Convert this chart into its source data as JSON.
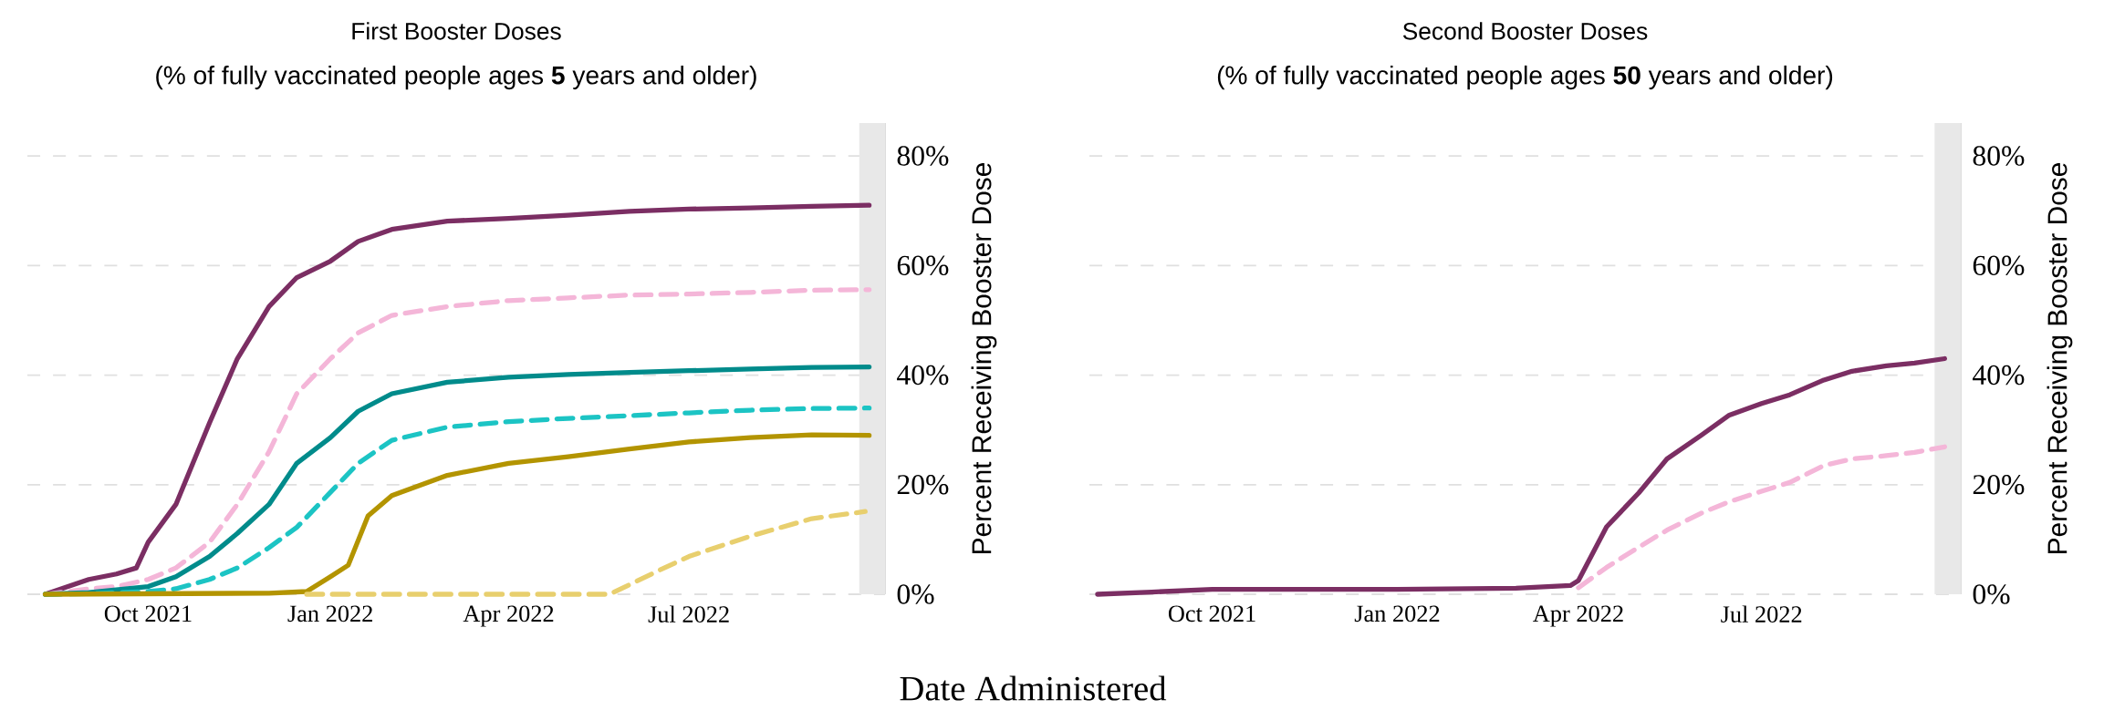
{
  "chart_data": [
    {
      "type": "line",
      "title": "First Booster Doses",
      "subtitle": "(% of fully vaccinated people ages **5** years and older)",
      "xlabel": "Date Administered",
      "ylabel": "Percent Receiving Booster Dose",
      "xlim": [
        "2021-08-01",
        "2022-10-08"
      ],
      "ylim": [
        0,
        86
      ],
      "xticks": [
        {
          "value": "2021-10-01",
          "label": "Oct 2021"
        },
        {
          "value": "2022-01-01",
          "label": "Jan 2022"
        },
        {
          "value": "2022-04-01",
          "label": "Apr 2022"
        },
        {
          "value": "2022-07-01",
          "label": "Jul 2022"
        }
      ],
      "yticks": [
        {
          "value": 0,
          "label": "0%"
        },
        {
          "value": 20,
          "label": "20%"
        },
        {
          "value": 40,
          "label": "40%"
        },
        {
          "value": 60,
          "label": "60%"
        },
        {
          "value": 80,
          "label": "80%"
        }
      ],
      "grid": "y",
      "bands": [
        {
          "axis": "x",
          "from": "2022-09-25",
          "to": "2022-10-08",
          "color": "#e8e8e8"
        }
      ],
      "series": [
        {
          "color": "#7b2e63",
          "line_style": "solid",
          "x": [
            "2021-08-10",
            "2021-09-01",
            "2021-09-15",
            "2021-09-25",
            "2021-10-01",
            "2021-10-15",
            "2021-11-01",
            "2021-11-15",
            "2021-12-01",
            "2021-12-15",
            "2022-01-01",
            "2022-01-15",
            "2022-02-01",
            "2022-03-01",
            "2022-04-01",
            "2022-05-01",
            "2022-06-01",
            "2022-07-01",
            "2022-08-01",
            "2022-09-01",
            "2022-09-30"
          ],
          "values": [
            0,
            2.7,
            3.7,
            4.8,
            9.5,
            16.4,
            31.3,
            43,
            52.5,
            57.8,
            60.8,
            64.4,
            66.6,
            68.1,
            68.6,
            69.2,
            69.9,
            70.3,
            70.5,
            70.8,
            71
          ]
        },
        {
          "color": "#f4b6d8",
          "line_style": "dashed",
          "x": [
            "2021-08-10",
            "2021-09-01",
            "2021-09-15",
            "2021-10-01",
            "2021-10-15",
            "2021-11-01",
            "2021-11-15",
            "2021-12-01",
            "2021-12-15",
            "2022-01-01",
            "2022-01-15",
            "2022-02-01",
            "2022-03-01",
            "2022-04-01",
            "2022-05-01",
            "2022-06-01",
            "2022-07-01",
            "2022-08-01",
            "2022-09-01",
            "2022-09-30"
          ],
          "values": [
            0,
            1,
            1.4,
            2.7,
            4.8,
            9.5,
            16.4,
            26,
            36.6,
            43,
            47.7,
            50.9,
            52.5,
            53.6,
            54.1,
            54.6,
            54.8,
            55.1,
            55.5,
            55.6
          ]
        },
        {
          "color": "#008b8b",
          "line_style": "solid",
          "x": [
            "2021-08-10",
            "2021-09-01",
            "2021-10-01",
            "2021-10-15",
            "2021-11-01",
            "2021-11-15",
            "2021-12-01",
            "2021-12-15",
            "2022-01-01",
            "2022-01-15",
            "2022-02-01",
            "2022-03-01",
            "2022-04-01",
            "2022-05-01",
            "2022-06-01",
            "2022-07-01",
            "2022-08-01",
            "2022-09-01",
            "2022-09-30"
          ],
          "values": [
            0,
            0.3,
            1.4,
            3.2,
            6.9,
            11.1,
            16.4,
            23.9,
            28.6,
            33.4,
            36.6,
            38.7,
            39.6,
            40.1,
            40.5,
            40.8,
            41.1,
            41.4,
            41.5
          ]
        },
        {
          "color": "#1cc4c4",
          "line_style": "dashed",
          "x": [
            "2021-08-10",
            "2021-09-01",
            "2021-10-01",
            "2021-10-15",
            "2021-11-01",
            "2021-11-15",
            "2021-12-01",
            "2021-12-15",
            "2022-01-01",
            "2022-01-15",
            "2022-02-01",
            "2022-03-01",
            "2022-04-01",
            "2022-05-01",
            "2022-06-01",
            "2022-07-01",
            "2022-08-01",
            "2022-09-01",
            "2022-09-30"
          ],
          "values": [
            0,
            0.1,
            0.5,
            1,
            2.7,
            4.8,
            8.5,
            12.2,
            18.6,
            23.9,
            28.1,
            30.5,
            31.5,
            32.1,
            32.6,
            33.1,
            33.6,
            33.9,
            34
          ]
        },
        {
          "color": "#b39400",
          "line_style": "solid",
          "x": [
            "2021-08-10",
            "2021-12-01",
            "2021-12-20",
            "2022-01-01",
            "2022-01-10",
            "2022-01-20",
            "2022-02-01",
            "2022-03-01",
            "2022-04-01",
            "2022-05-01",
            "2022-06-01",
            "2022-07-01",
            "2022-08-01",
            "2022-09-01",
            "2022-09-30"
          ],
          "values": [
            0,
            0.2,
            0.5,
            3.2,
            5.3,
            14.3,
            18,
            21.7,
            23.9,
            25.1,
            26.5,
            27.8,
            28.6,
            29.1,
            29
          ]
        },
        {
          "color": "#e8cf6e",
          "line_style": "dashed",
          "x": [
            "2021-12-20",
            "2022-05-22",
            "2022-06-15",
            "2022-07-01",
            "2022-08-01",
            "2022-09-01",
            "2022-09-28"
          ],
          "values": [
            0,
            0,
            4.2,
            6.9,
            10.6,
            13.8,
            15.1
          ]
        }
      ]
    },
    {
      "type": "line",
      "title": "Second Booster Doses",
      "subtitle": "(% of fully vaccinated people ages **50** years and older)",
      "ylabel": "Percent Receiving Booster Dose",
      "xlim": [
        "2021-08-01",
        "2022-10-08"
      ],
      "ylim": [
        0,
        86
      ],
      "xticks": [
        {
          "value": "2021-10-01",
          "label": "Oct 2021"
        },
        {
          "value": "2022-01-01",
          "label": "Jan 2022"
        },
        {
          "value": "2022-04-01",
          "label": "Apr 2022"
        },
        {
          "value": "2022-07-01",
          "label": "Jul 2022"
        }
      ],
      "yticks": [
        {
          "value": 0,
          "label": "0%"
        },
        {
          "value": 20,
          "label": "20%"
        },
        {
          "value": 40,
          "label": "40%"
        },
        {
          "value": 60,
          "label": "60%"
        },
        {
          "value": 80,
          "label": "80%"
        }
      ],
      "grid": "y",
      "bands": [
        {
          "axis": "x",
          "from": "2022-09-25",
          "to": "2022-10-08",
          "color": "#e8e8e8"
        }
      ],
      "series": [
        {
          "color": "#7b2e63",
          "line_style": "solid",
          "x": [
            "2021-08-05",
            "2021-09-01",
            "2021-10-01",
            "2022-01-01",
            "2022-03-01",
            "2022-03-28",
            "2022-04-01",
            "2022-04-15",
            "2022-05-01",
            "2022-05-15",
            "2022-06-01",
            "2022-06-15",
            "2022-07-01",
            "2022-07-15",
            "2022-08-01",
            "2022-08-15",
            "2022-09-01",
            "2022-09-15",
            "2022-09-30"
          ],
          "values": [
            0,
            0.4,
            0.9,
            0.9,
            1.1,
            1.6,
            2.5,
            12.3,
            18.5,
            24.7,
            29,
            32.7,
            34.8,
            36.4,
            39.1,
            40.7,
            41.7,
            42.2,
            43
          ]
        },
        {
          "color": "#f4b6d8",
          "line_style": "dashed",
          "x": [
            "2022-04-01",
            "2022-04-15",
            "2022-05-01",
            "2022-05-15",
            "2022-06-01",
            "2022-06-15",
            "2022-07-01",
            "2022-07-15",
            "2022-08-01",
            "2022-08-15",
            "2022-09-01",
            "2022-09-15",
            "2022-09-30"
          ],
          "values": [
            1.2,
            4.9,
            8.6,
            11.7,
            14.8,
            16.9,
            18.8,
            20.4,
            23.5,
            24.7,
            25.3,
            25.9,
            26.9
          ]
        }
      ]
    }
  ]
}
